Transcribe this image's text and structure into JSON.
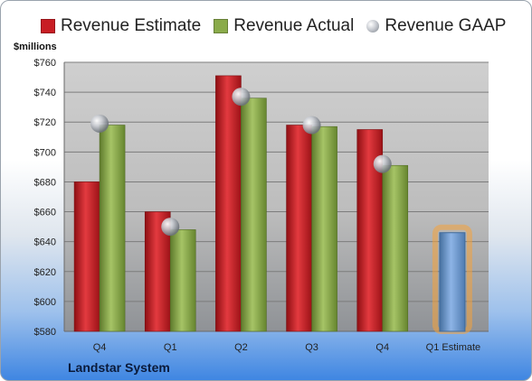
{
  "legend": {
    "estimate_label": "Revenue Estimate",
    "actual_label": "Revenue Actual",
    "gaap_label": "Revenue GAAP"
  },
  "units_label": "$millions",
  "company": "Landstar System",
  "colors": {
    "estimate": "#c81e24",
    "actual": "#8aab4a",
    "gaap": "#b9bcc2",
    "forecast": "#6f9bd6",
    "forecast_glow": "#f5a33a"
  },
  "chart_data": {
    "type": "bar",
    "ylim": [
      580,
      760
    ],
    "y_ticks": [
      "$580",
      "$600",
      "$620",
      "$640",
      "$660",
      "$680",
      "$700",
      "$720",
      "$740",
      "$760"
    ],
    "y_tick_values": [
      580,
      600,
      620,
      640,
      660,
      680,
      700,
      720,
      740,
      760
    ],
    "grid": true,
    "legend_position": "top",
    "categories": [
      "Q4",
      "Q1",
      "Q2",
      "Q3",
      "Q4",
      "Q1 Estimate"
    ],
    "series": [
      {
        "name": "Revenue Estimate",
        "values": [
          680,
          660,
          751,
          718,
          715,
          null
        ]
      },
      {
        "name": "Revenue Actual",
        "values": [
          718,
          648,
          736,
          717,
          691,
          646
        ]
      },
      {
        "name": "Revenue GAAP",
        "values": [
          719,
          650,
          737,
          718,
          692,
          null
        ]
      }
    ]
  }
}
